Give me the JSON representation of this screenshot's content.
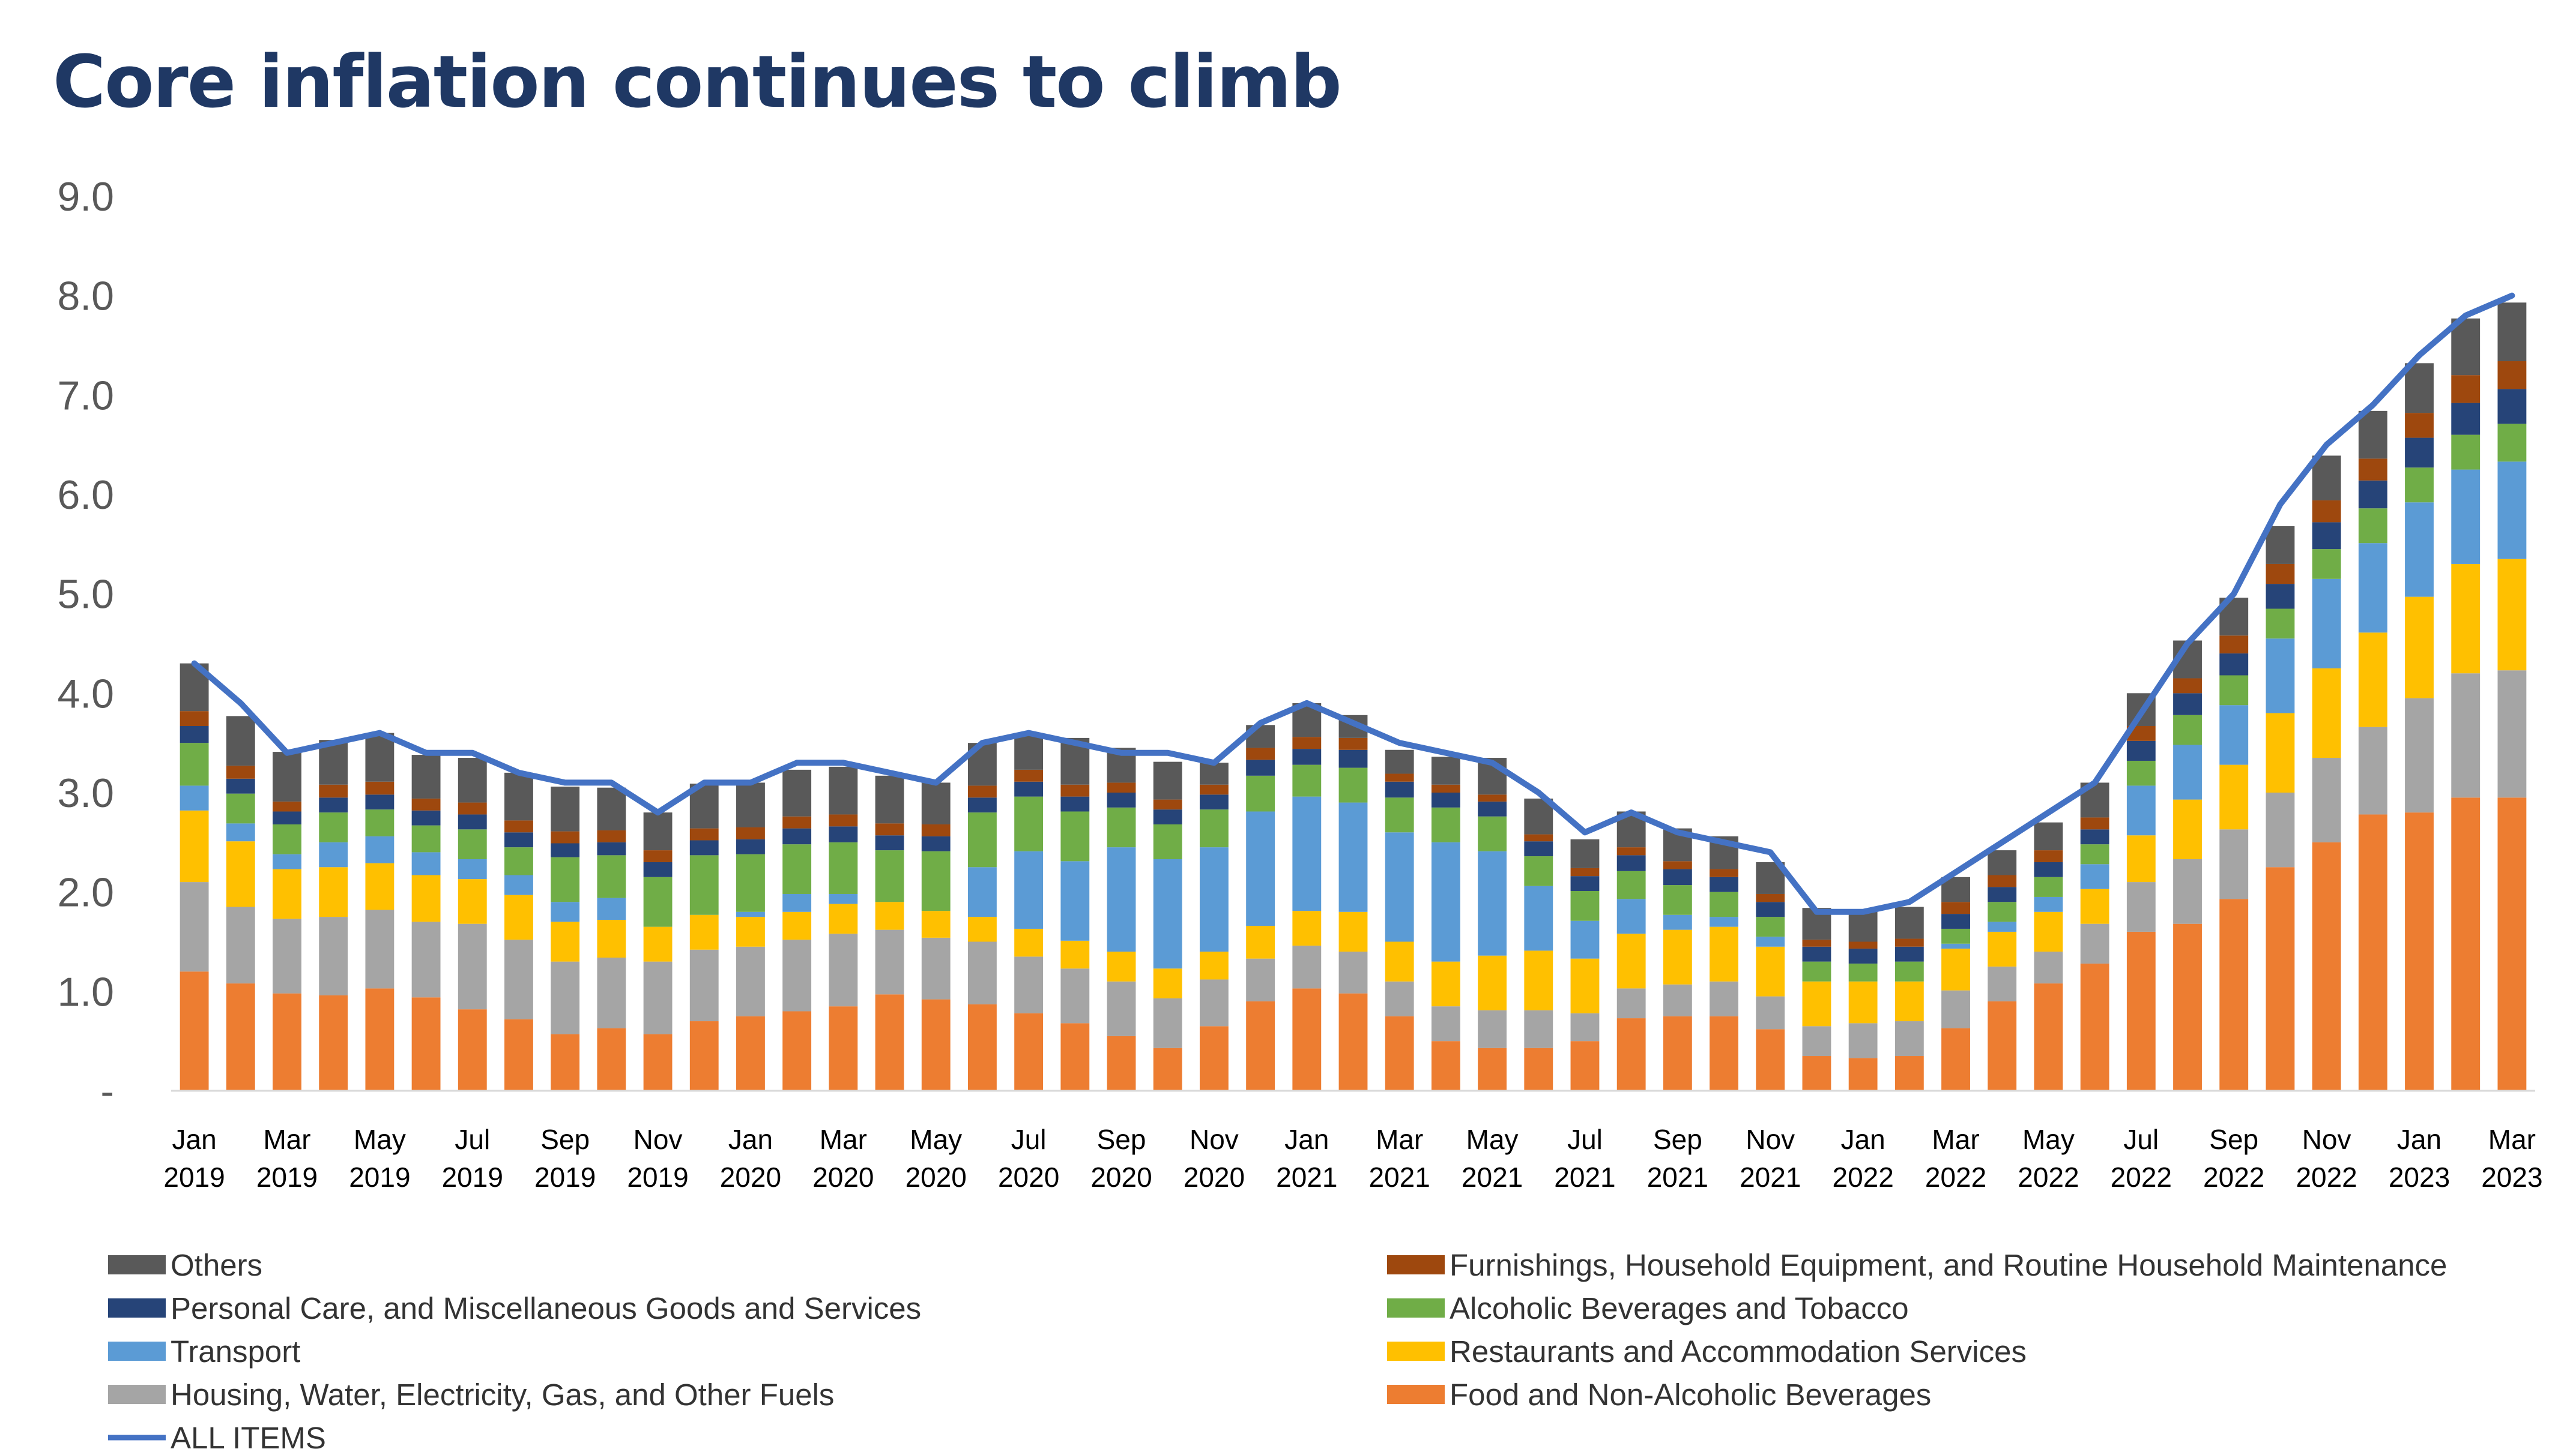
{
  "title": "Core inflation continues to climb",
  "chart_data": {
    "type": "bar",
    "subtype": "stacked-bar-with-line",
    "title": "Core inflation continues to climb",
    "xlabel": "",
    "ylabel": "",
    "ylim": [
      0,
      9
    ],
    "y_ticks": [
      "-",
      "1.0",
      "2.0",
      "3.0",
      "4.0",
      "5.0",
      "6.0",
      "7.0",
      "8.0",
      "9.0"
    ],
    "grid": false,
    "legend_position": "bottom",
    "categories": [
      "Jan 2019",
      "Feb 2019",
      "Mar 2019",
      "Apr 2019",
      "May 2019",
      "Jun 2019",
      "Jul 2019",
      "Aug 2019",
      "Sep 2019",
      "Oct 2019",
      "Nov 2019",
      "Dec 2019",
      "Jan 2020",
      "Feb 2020",
      "Mar 2020",
      "Apr 2020",
      "May 2020",
      "Jun 2020",
      "Jul 2020",
      "Aug 2020",
      "Sep 2020",
      "Oct 2020",
      "Nov 2020",
      "Dec 2020",
      "Jan 2021",
      "Feb 2021",
      "Mar 2021",
      "Apr 2021",
      "May 2021",
      "Jun 2021",
      "Jul 2021",
      "Aug 2021",
      "Sep 2021",
      "Oct 2021",
      "Nov 2021",
      "Dec 2021",
      "Jan 2022",
      "Feb 2022",
      "Mar 2022",
      "Apr 2022",
      "May 2022",
      "Jun 2022",
      "Jul 2022",
      "Aug 2022",
      "Sep 2022",
      "Oct 2022",
      "Nov 2022",
      "Dec 2022",
      "Jan 2023",
      "Feb 2023",
      "Mar 2023"
    ],
    "x_tick_labels": [
      {
        "month": "Jan",
        "year": "2019",
        "index": 0
      },
      {
        "month": "Mar",
        "year": "2019",
        "index": 2
      },
      {
        "month": "May",
        "year": "2019",
        "index": 4
      },
      {
        "month": "Jul",
        "year": "2019",
        "index": 6
      },
      {
        "month": "Sep",
        "year": "2019",
        "index": 8
      },
      {
        "month": "Nov",
        "year": "2019",
        "index": 10
      },
      {
        "month": "Jan",
        "year": "2020",
        "index": 12
      },
      {
        "month": "Mar",
        "year": "2020",
        "index": 14
      },
      {
        "month": "May",
        "year": "2020",
        "index": 16
      },
      {
        "month": "Jul",
        "year": "2020",
        "index": 18
      },
      {
        "month": "Sep",
        "year": "2020",
        "index": 20
      },
      {
        "month": "Nov",
        "year": "2020",
        "index": 22
      },
      {
        "month": "Jan",
        "year": "2021",
        "index": 24
      },
      {
        "month": "Mar",
        "year": "2021",
        "index": 26
      },
      {
        "month": "May",
        "year": "2021",
        "index": 28
      },
      {
        "month": "Jul",
        "year": "2021",
        "index": 30
      },
      {
        "month": "Sep",
        "year": "2021",
        "index": 32
      },
      {
        "month": "Nov",
        "year": "2021",
        "index": 34
      },
      {
        "month": "Jan",
        "year": "2022",
        "index": 36
      },
      {
        "month": "Mar",
        "year": "2022",
        "index": 38
      },
      {
        "month": "May",
        "year": "2022",
        "index": 40
      },
      {
        "month": "Jul",
        "year": "2022",
        "index": 42
      },
      {
        "month": "Sep",
        "year": "2022",
        "index": 44
      },
      {
        "month": "Nov",
        "year": "2022",
        "index": 46
      },
      {
        "month": "Jan",
        "year": "2023",
        "index": 48
      },
      {
        "month": "Mar",
        "year": "2023",
        "index": 50
      }
    ],
    "series": [
      {
        "name": "Food and Non-Alcoholic Beverages",
        "color": "#ed7d31",
        "values": [
          1.2,
          1.08,
          0.98,
          0.96,
          1.03,
          0.94,
          0.82,
          0.72,
          0.57,
          0.63,
          0.57,
          0.7,
          0.75,
          0.8,
          0.85,
          0.97,
          0.92,
          0.87,
          0.78,
          0.68,
          0.55,
          0.43,
          0.65,
          0.9,
          1.03,
          0.98,
          0.75,
          0.5,
          0.43,
          0.43,
          0.5,
          0.73,
          0.75,
          0.75,
          0.62,
          0.35,
          0.33,
          0.35,
          0.63,
          0.9,
          1.08,
          1.28,
          1.6,
          1.68,
          1.93,
          2.25,
          2.5,
          2.78,
          2.8,
          2.95,
          2.95
        ]
      },
      {
        "name": "Housing, Water, Electricity, Gas, and Other Fuels",
        "color": "#a5a5a5",
        "values": [
          0.9,
          0.77,
          0.75,
          0.79,
          0.79,
          0.76,
          0.86,
          0.8,
          0.73,
          0.71,
          0.73,
          0.72,
          0.7,
          0.72,
          0.73,
          0.65,
          0.62,
          0.63,
          0.57,
          0.55,
          0.55,
          0.5,
          0.47,
          0.43,
          0.43,
          0.42,
          0.35,
          0.35,
          0.38,
          0.38,
          0.28,
          0.3,
          0.32,
          0.35,
          0.33,
          0.3,
          0.35,
          0.35,
          0.38,
          0.35,
          0.32,
          0.4,
          0.5,
          0.65,
          0.7,
          0.75,
          0.85,
          0.88,
          1.15,
          1.25,
          1.28
        ]
      },
      {
        "name": "Restaurants and Accommodation Services",
        "color": "#ffc000",
        "values": [
          0.72,
          0.66,
          0.5,
          0.5,
          0.47,
          0.47,
          0.45,
          0.45,
          0.4,
          0.38,
          0.35,
          0.35,
          0.3,
          0.28,
          0.3,
          0.28,
          0.27,
          0.25,
          0.28,
          0.28,
          0.3,
          0.3,
          0.28,
          0.33,
          0.35,
          0.4,
          0.4,
          0.45,
          0.55,
          0.6,
          0.55,
          0.55,
          0.55,
          0.55,
          0.5,
          0.45,
          0.42,
          0.4,
          0.42,
          0.35,
          0.4,
          0.35,
          0.47,
          0.6,
          0.65,
          0.8,
          0.9,
          0.95,
          1.02,
          1.1,
          1.12
        ]
      },
      {
        "name": "Transport",
        "color": "#5b9bd5",
        "values": [
          0.25,
          0.18,
          0.15,
          0.25,
          0.27,
          0.23,
          0.2,
          0.2,
          0.2,
          0.22,
          0.0,
          0.0,
          0.05,
          0.18,
          0.1,
          0.0,
          0.0,
          0.5,
          0.78,
          0.8,
          1.05,
          1.1,
          1.05,
          1.15,
          1.15,
          1.1,
          1.1,
          1.2,
          1.05,
          0.65,
          0.38,
          0.35,
          0.15,
          0.1,
          0.1,
          0.0,
          0.0,
          0.0,
          0.05,
          0.1,
          0.15,
          0.25,
          0.5,
          0.55,
          0.6,
          0.75,
          0.9,
          0.9,
          0.95,
          0.95,
          0.98
        ]
      },
      {
        "name": "Alcoholic Beverages and Tobacco",
        "color": "#70ad47",
        "values": [
          0.43,
          0.3,
          0.3,
          0.3,
          0.27,
          0.27,
          0.3,
          0.28,
          0.45,
          0.43,
          0.5,
          0.6,
          0.58,
          0.5,
          0.52,
          0.52,
          0.6,
          0.55,
          0.55,
          0.5,
          0.4,
          0.35,
          0.38,
          0.36,
          0.32,
          0.35,
          0.35,
          0.35,
          0.35,
          0.3,
          0.3,
          0.28,
          0.3,
          0.25,
          0.2,
          0.2,
          0.18,
          0.2,
          0.15,
          0.2,
          0.2,
          0.2,
          0.25,
          0.3,
          0.3,
          0.3,
          0.3,
          0.35,
          0.35,
          0.35,
          0.38
        ]
      },
      {
        "name": "Personal Care, and Miscellaneous Goods and Services",
        "color": "#264478",
        "values": [
          0.17,
          0.15,
          0.13,
          0.15,
          0.15,
          0.15,
          0.15,
          0.15,
          0.14,
          0.13,
          0.15,
          0.15,
          0.15,
          0.16,
          0.16,
          0.15,
          0.15,
          0.15,
          0.15,
          0.15,
          0.15,
          0.15,
          0.15,
          0.16,
          0.16,
          0.18,
          0.16,
          0.15,
          0.15,
          0.15,
          0.15,
          0.16,
          0.16,
          0.15,
          0.15,
          0.15,
          0.15,
          0.15,
          0.15,
          0.15,
          0.15,
          0.15,
          0.2,
          0.22,
          0.22,
          0.25,
          0.27,
          0.28,
          0.3,
          0.32,
          0.35
        ]
      },
      {
        "name": "Furnishings, Household Equipment, and Routine Household Maintenance",
        "color": "#9e480e",
        "values": [
          0.15,
          0.13,
          0.1,
          0.13,
          0.13,
          0.12,
          0.12,
          0.12,
          0.12,
          0.12,
          0.12,
          0.12,
          0.12,
          0.12,
          0.12,
          0.12,
          0.12,
          0.12,
          0.12,
          0.12,
          0.1,
          0.1,
          0.1,
          0.12,
          0.12,
          0.12,
          0.08,
          0.08,
          0.07,
          0.07,
          0.08,
          0.08,
          0.08,
          0.08,
          0.08,
          0.07,
          0.07,
          0.08,
          0.12,
          0.12,
          0.12,
          0.12,
          0.15,
          0.15,
          0.18,
          0.2,
          0.22,
          0.22,
          0.25,
          0.28,
          0.28
        ]
      },
      {
        "name": "Others",
        "color": "#595959",
        "values": [
          0.48,
          0.5,
          0.5,
          0.45,
          0.49,
          0.44,
          0.45,
          0.48,
          0.45,
          0.43,
          0.38,
          0.45,
          0.45,
          0.47,
          0.48,
          0.48,
          0.42,
          0.43,
          0.37,
          0.47,
          0.35,
          0.38,
          0.22,
          0.23,
          0.34,
          0.23,
          0.24,
          0.28,
          0.37,
          0.36,
          0.29,
          0.36,
          0.33,
          0.33,
          0.32,
          0.32,
          0.32,
          0.32,
          0.25,
          0.25,
          0.28,
          0.35,
          0.33,
          0.38,
          0.38,
          0.38,
          0.45,
          0.48,
          0.5,
          0.57,
          0.59
        ]
      }
    ],
    "line_series": {
      "name": "ALL ITEMS",
      "color": "#4472c4",
      "values": [
        4.3,
        3.9,
        3.4,
        3.5,
        3.6,
        3.4,
        3.4,
        3.2,
        3.1,
        3.1,
        2.8,
        3.1,
        3.1,
        3.3,
        3.3,
        3.2,
        3.1,
        3.5,
        3.6,
        3.5,
        3.4,
        3.4,
        3.3,
        3.7,
        3.9,
        3.7,
        3.5,
        3.4,
        3.3,
        3.0,
        2.6,
        2.8,
        2.6,
        2.5,
        2.4,
        1.8,
        1.8,
        1.9,
        2.2,
        2.5,
        2.8,
        3.1,
        3.8,
        4.5,
        5.0,
        5.9,
        6.5,
        6.9,
        7.4,
        7.8,
        8.0
      ]
    },
    "legend": {
      "left_column": [
        "Others",
        "Personal Care, and Miscellaneous Goods and Services",
        "Transport",
        "Housing, Water, Electricity, Gas, and Other Fuels",
        "ALL ITEMS"
      ],
      "right_column": [
        "Furnishings, Household Equipment, and Routine Household Maintenance",
        "Alcoholic Beverages and Tobacco",
        "Restaurants and Accommodation Services",
        "Food and Non-Alcoholic Beverages"
      ]
    }
  }
}
